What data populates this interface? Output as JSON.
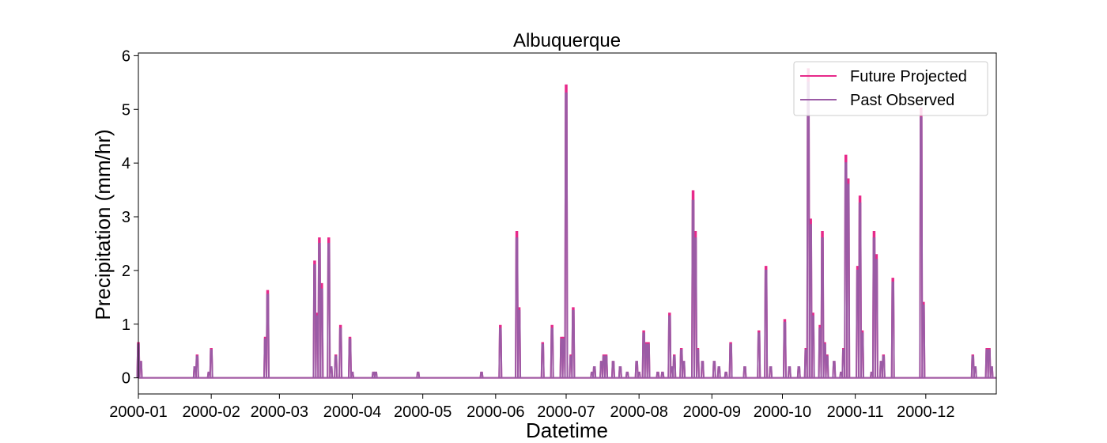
{
  "chart_data": {
    "type": "line",
    "title": "Albuquerque",
    "xlabel": "Datetime",
    "ylabel": "Precipitation (mm/hr)",
    "xlim": [
      "2000-01-01",
      "2000-12-31"
    ],
    "ylim": [
      -0.3,
      6.05
    ],
    "x_ticks": [
      "2000-01",
      "2000-02",
      "2000-03",
      "2000-04",
      "2000-05",
      "2000-06",
      "2000-07",
      "2000-08",
      "2000-09",
      "2000-10",
      "2000-11",
      "2000-12"
    ],
    "y_ticks": [
      "0",
      "1",
      "2",
      "3",
      "4",
      "5",
      "6"
    ],
    "legend_position": "top-right",
    "grid": false,
    "series": [
      {
        "name": "Future Projected",
        "color": "#e7298a",
        "points": [
          [
            "2000-01-01",
            0.65
          ],
          [
            "2000-01-02",
            0.3
          ],
          [
            "2000-01-25",
            0.2
          ],
          [
            "2000-01-26",
            0.42
          ],
          [
            "2000-01-31",
            0.1
          ],
          [
            "2000-02-01",
            0.54
          ],
          [
            "2000-02-24",
            0.75
          ],
          [
            "2000-02-25",
            1.62
          ],
          [
            "2000-03-22",
            2.6
          ],
          [
            "2000-03-23",
            0.2
          ],
          [
            "2000-04-01",
            0.1
          ],
          [
            "2000-03-16",
            2.17
          ],
          [
            "2000-03-17",
            1.2
          ],
          [
            "2000-03-18",
            2.6
          ],
          [
            "2000-03-19",
            1.75
          ],
          [
            "2000-03-25",
            0.42
          ],
          [
            "2000-03-27",
            0.97
          ],
          [
            "2000-03-31",
            0.75
          ],
          [
            "2000-04-10",
            0.1
          ],
          [
            "2000-04-11",
            0.1
          ],
          [
            "2000-04-29",
            0.1
          ],
          [
            "2000-05-26",
            0.1
          ],
          [
            "2000-06-03",
            0.97
          ],
          [
            "2000-06-10",
            2.72
          ],
          [
            "2000-06-11",
            1.3
          ],
          [
            "2000-06-21",
            0.65
          ],
          [
            "2000-06-25",
            0.97
          ],
          [
            "2000-06-29",
            0.75
          ],
          [
            "2000-06-30",
            0.75
          ],
          [
            "2000-07-01",
            5.45
          ],
          [
            "2000-07-03",
            0.42
          ],
          [
            "2000-07-04",
            1.3
          ],
          [
            "2000-07-12",
            0.1
          ],
          [
            "2000-07-13",
            0.2
          ],
          [
            "2000-07-16",
            0.3
          ],
          [
            "2000-07-17",
            0.42
          ],
          [
            "2000-07-18",
            0.42
          ],
          [
            "2000-07-21",
            0.3
          ],
          [
            "2000-07-24",
            0.2
          ],
          [
            "2000-07-27",
            0.1
          ],
          [
            "2000-07-31",
            0.3
          ],
          [
            "2000-08-01",
            0.1
          ],
          [
            "2000-08-03",
            0.87
          ],
          [
            "2000-08-04",
            0.65
          ],
          [
            "2000-08-05",
            0.65
          ],
          [
            "2000-08-09",
            0.1
          ],
          [
            "2000-08-11",
            0.1
          ],
          [
            "2000-08-14",
            1.2
          ],
          [
            "2000-08-15",
            0.2
          ],
          [
            "2000-08-16",
            0.42
          ],
          [
            "2000-08-19",
            0.54
          ],
          [
            "2000-08-20",
            0.3
          ],
          [
            "2000-08-24",
            3.48
          ],
          [
            "2000-08-25",
            2.72
          ],
          [
            "2000-08-26",
            0.54
          ],
          [
            "2000-08-28",
            0.3
          ],
          [
            "2000-09-02",
            0.3
          ],
          [
            "2000-09-04",
            0.2
          ],
          [
            "2000-09-07",
            0.1
          ],
          [
            "2000-09-09",
            0.65
          ],
          [
            "2000-09-15",
            0.2
          ],
          [
            "2000-09-21",
            0.87
          ],
          [
            "2000-09-24",
            2.07
          ],
          [
            "2000-09-26",
            0.2
          ],
          [
            "2000-10-02",
            1.08
          ],
          [
            "2000-10-04",
            0.2
          ],
          [
            "2000-10-08",
            0.2
          ],
          [
            "2000-10-11",
            0.54
          ],
          [
            "2000-10-12",
            5.75
          ],
          [
            "2000-10-13",
            2.95
          ],
          [
            "2000-10-14",
            1.2
          ],
          [
            "2000-10-17",
            0.97
          ],
          [
            "2000-10-18",
            2.72
          ],
          [
            "2000-10-19",
            0.65
          ],
          [
            "2000-10-20",
            0.42
          ],
          [
            "2000-10-23",
            0.3
          ],
          [
            "2000-10-26",
            0.1
          ],
          [
            "2000-10-27",
            0.54
          ],
          [
            "2000-10-28",
            4.14
          ],
          [
            "2000-10-29",
            3.7
          ],
          [
            "2000-11-02",
            2.07
          ],
          [
            "2000-11-03",
            3.38
          ],
          [
            "2000-11-04",
            0.87
          ],
          [
            "2000-11-08",
            0.1
          ],
          [
            "2000-11-09",
            2.72
          ],
          [
            "2000-11-10",
            2.29
          ],
          [
            "2000-11-12",
            0.3
          ],
          [
            "2000-11-13",
            0.42
          ],
          [
            "2000-11-17",
            1.85
          ],
          [
            "2000-11-29",
            5.02
          ],
          [
            "2000-11-30",
            1.4
          ],
          [
            "2000-12-21",
            0.42
          ],
          [
            "2000-12-22",
            0.2
          ],
          [
            "2000-12-27",
            0.54
          ],
          [
            "2000-12-28",
            0.54
          ],
          [
            "2000-12-29",
            0.2
          ]
        ]
      },
      {
        "name": "Past Observed",
        "color": "#9b5ba5",
        "points": [
          [
            "2000-01-01",
            0.62
          ],
          [
            "2000-01-02",
            0.3
          ],
          [
            "2000-01-25",
            0.2
          ],
          [
            "2000-01-26",
            0.4
          ],
          [
            "2000-01-31",
            0.1
          ],
          [
            "2000-02-01",
            0.52
          ],
          [
            "2000-02-24",
            0.72
          ],
          [
            "2000-02-25",
            1.55
          ],
          [
            "2000-03-22",
            2.5
          ],
          [
            "2000-03-23",
            0.2
          ],
          [
            "2000-04-01",
            0.1
          ],
          [
            "2000-03-16",
            2.1
          ],
          [
            "2000-03-17",
            1.15
          ],
          [
            "2000-03-18",
            2.5
          ],
          [
            "2000-03-19",
            1.65
          ],
          [
            "2000-03-25",
            0.4
          ],
          [
            "2000-03-27",
            0.92
          ],
          [
            "2000-03-31",
            0.72
          ],
          [
            "2000-04-10",
            0.1
          ],
          [
            "2000-04-11",
            0.1
          ],
          [
            "2000-04-29",
            0.1
          ],
          [
            "2000-05-26",
            0.1
          ],
          [
            "2000-06-03",
            0.92
          ],
          [
            "2000-06-10",
            2.6
          ],
          [
            "2000-06-11",
            1.25
          ],
          [
            "2000-06-21",
            0.62
          ],
          [
            "2000-06-25",
            0.92
          ],
          [
            "2000-06-29",
            0.72
          ],
          [
            "2000-06-30",
            0.72
          ],
          [
            "2000-07-01",
            5.3
          ],
          [
            "2000-07-03",
            0.4
          ],
          [
            "2000-07-04",
            1.25
          ],
          [
            "2000-07-12",
            0.1
          ],
          [
            "2000-07-13",
            0.2
          ],
          [
            "2000-07-16",
            0.3
          ],
          [
            "2000-07-17",
            0.4
          ],
          [
            "2000-07-18",
            0.4
          ],
          [
            "2000-07-21",
            0.3
          ],
          [
            "2000-07-24",
            0.2
          ],
          [
            "2000-07-27",
            0.1
          ],
          [
            "2000-07-31",
            0.3
          ],
          [
            "2000-08-01",
            0.1
          ],
          [
            "2000-08-03",
            0.83
          ],
          [
            "2000-08-04",
            0.62
          ],
          [
            "2000-08-05",
            0.62
          ],
          [
            "2000-08-09",
            0.1
          ],
          [
            "2000-08-11",
            0.1
          ],
          [
            "2000-08-14",
            1.15
          ],
          [
            "2000-08-15",
            0.2
          ],
          [
            "2000-08-16",
            0.4
          ],
          [
            "2000-08-19",
            0.52
          ],
          [
            "2000-08-20",
            0.3
          ],
          [
            "2000-08-24",
            3.3
          ],
          [
            "2000-08-25",
            2.6
          ],
          [
            "2000-08-26",
            0.52
          ],
          [
            "2000-08-28",
            0.3
          ],
          [
            "2000-09-02",
            0.3
          ],
          [
            "2000-09-04",
            0.2
          ],
          [
            "2000-09-07",
            0.1
          ],
          [
            "2000-09-09",
            0.62
          ],
          [
            "2000-09-15",
            0.2
          ],
          [
            "2000-09-21",
            0.83
          ],
          [
            "2000-09-24",
            2.0
          ],
          [
            "2000-09-26",
            0.2
          ],
          [
            "2000-10-02",
            1.03
          ],
          [
            "2000-10-04",
            0.2
          ],
          [
            "2000-10-08",
            0.2
          ],
          [
            "2000-10-11",
            0.52
          ],
          [
            "2000-10-12",
            5.5
          ],
          [
            "2000-10-13",
            2.85
          ],
          [
            "2000-10-14",
            1.15
          ],
          [
            "2000-10-17",
            0.92
          ],
          [
            "2000-10-18",
            2.6
          ],
          [
            "2000-10-19",
            0.62
          ],
          [
            "2000-10-20",
            0.4
          ],
          [
            "2000-10-23",
            0.3
          ],
          [
            "2000-10-26",
            0.1
          ],
          [
            "2000-10-27",
            0.52
          ],
          [
            "2000-10-28",
            4.0
          ],
          [
            "2000-10-29",
            3.6
          ],
          [
            "2000-11-02",
            2.0
          ],
          [
            "2000-11-03",
            3.25
          ],
          [
            "2000-11-04",
            0.83
          ],
          [
            "2000-11-08",
            0.1
          ],
          [
            "2000-11-09",
            2.6
          ],
          [
            "2000-11-10",
            2.2
          ],
          [
            "2000-11-12",
            0.3
          ],
          [
            "2000-11-13",
            0.4
          ],
          [
            "2000-11-17",
            1.78
          ],
          [
            "2000-11-29",
            4.85
          ],
          [
            "2000-11-30",
            1.35
          ],
          [
            "2000-12-21",
            0.4
          ],
          [
            "2000-12-22",
            0.2
          ],
          [
            "2000-12-27",
            0.52
          ],
          [
            "2000-12-28",
            0.52
          ],
          [
            "2000-12-29",
            0.2
          ]
        ]
      }
    ]
  }
}
